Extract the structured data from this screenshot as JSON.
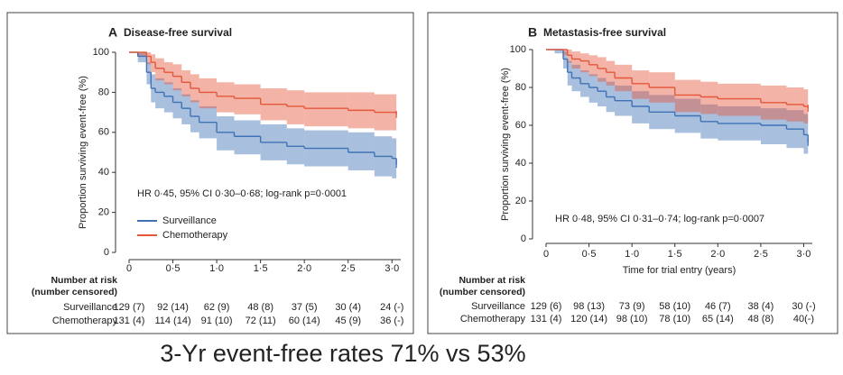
{
  "chart_data": [
    {
      "type": "line",
      "panel_label": "A",
      "title": "Disease-free survival",
      "ylabel": "Proportion surviving event-free (%)",
      "annotation": "HR 0·45, 95% CI 0·30–0·68; log-rank p=0·0001",
      "legend": "lower-left",
      "x": [
        0,
        0.1,
        0.2,
        0.25,
        0.3,
        0.4,
        0.5,
        0.6,
        0.7,
        0.8,
        1.0,
        1.2,
        1.5,
        1.8,
        2.0,
        2.5,
        2.8,
        3.0,
        3.05
      ],
      "series": [
        {
          "name": "Surveillance",
          "color": "#3f72b5",
          "values": [
            100,
            98,
            90,
            82,
            80,
            78,
            75,
            72,
            68,
            65,
            60,
            58,
            55,
            53,
            52,
            50,
            48,
            47,
            44
          ],
          "lower": [
            100,
            95,
            84,
            75,
            72,
            70,
            67,
            64,
            60,
            57,
            51,
            49,
            46,
            44,
            43,
            41,
            38,
            37,
            33
          ],
          "upper": [
            100,
            100,
            95,
            89,
            87,
            85,
            82,
            79,
            76,
            73,
            68,
            66,
            64,
            62,
            61,
            60,
            58,
            57,
            55
          ]
        },
        {
          "name": "Chemotherapy",
          "color": "#e4573b",
          "values": [
            100,
            100,
            98,
            95,
            92,
            90,
            88,
            85,
            82,
            80,
            78,
            77,
            74,
            73,
            72,
            71,
            70,
            70,
            69
          ],
          "lower": [
            100,
            98,
            94,
            90,
            86,
            84,
            81,
            78,
            75,
            72,
            70,
            69,
            66,
            64,
            63,
            62,
            61,
            61,
            59
          ],
          "upper": [
            100,
            100,
            100,
            99,
            97,
            95,
            94,
            91,
            89,
            87,
            85,
            84,
            82,
            81,
            80,
            80,
            79,
            79,
            78
          ]
        }
      ],
      "xlim": [
        0,
        3.1
      ],
      "ylim": [
        0,
        100
      ],
      "xticks": [
        0,
        {
          "value": 0.5,
          "label": "0·5"
        },
        {
          "value": 1,
          "label": "1·0"
        },
        {
          "value": 1.5,
          "label": "1·5"
        },
        {
          "value": 2,
          "label": "2·0"
        },
        {
          "value": 2.5,
          "label": "2·5"
        },
        {
          "value": 3,
          "label": "3·0"
        }
      ],
      "yticks": [
        0,
        20,
        40,
        60,
        80,
        100
      ],
      "risk_table": {
        "header": [
          "Number at risk",
          "(number censored)"
        ],
        "rows": [
          {
            "label": "Surveillance",
            "cells": [
              "129 (7)",
              "92 (14)",
              "62 (9)",
              "48 (8)",
              "37 (5)",
              "30 (4)",
              "24 (-)"
            ]
          },
          {
            "label": "Chemotherapy",
            "cells": [
              "131 (4)",
              "114 (14)",
              "91 (10)",
              "72 (11)",
              "60 (14)",
              "45 (9)",
              "36 (-)"
            ]
          }
        ]
      }
    },
    {
      "type": "line",
      "panel_label": "B",
      "title": "Metastasis-free survival",
      "ylabel": "Proportion surviving event-free (%)",
      "xlabel": "Time for trial entry (years)",
      "annotation": "HR 0·48, 95% CI 0·31–0·74; log-rank p=0·0007",
      "x": [
        0,
        0.1,
        0.2,
        0.25,
        0.3,
        0.4,
        0.5,
        0.6,
        0.7,
        0.8,
        1.0,
        1.2,
        1.5,
        1.8,
        2.0,
        2.5,
        2.8,
        3.0,
        3.05
      ],
      "series": [
        {
          "name": "Surveillance",
          "color": "#3f72b5",
          "values": [
            100,
            100,
            95,
            88,
            85,
            82,
            80,
            78,
            75,
            73,
            70,
            67,
            65,
            62,
            61,
            60,
            58,
            55,
            51
          ],
          "lower": [
            100,
            98,
            90,
            81,
            78,
            75,
            72,
            70,
            67,
            65,
            61,
            58,
            56,
            53,
            52,
            50,
            48,
            45,
            40
          ],
          "upper": [
            100,
            100,
            99,
            94,
            92,
            89,
            87,
            85,
            83,
            81,
            78,
            76,
            74,
            71,
            70,
            69,
            68,
            66,
            62
          ]
        },
        {
          "name": "Chemotherapy",
          "color": "#e4573b",
          "values": [
            100,
            100,
            100,
            97,
            95,
            94,
            92,
            90,
            88,
            85,
            82,
            80,
            76,
            75,
            74,
            72,
            71,
            70,
            69
          ],
          "lower": [
            100,
            100,
            97,
            93,
            90,
            88,
            86,
            83,
            81,
            78,
            74,
            72,
            67,
            66,
            65,
            63,
            62,
            61,
            59
          ],
          "upper": [
            100,
            100,
            100,
            100,
            99,
            98,
            97,
            96,
            94,
            92,
            89,
            88,
            84,
            83,
            82,
            81,
            80,
            79,
            78
          ]
        }
      ],
      "xlim": [
        0,
        3.1
      ],
      "ylim": [
        0,
        100
      ],
      "xticks": [
        0,
        {
          "value": 0.5,
          "label": "0·5"
        },
        {
          "value": 1,
          "label": "1·0"
        },
        {
          "value": 1.5,
          "label": "1·5"
        },
        {
          "value": 2,
          "label": "2·0"
        },
        {
          "value": 2.5,
          "label": "2·5"
        },
        {
          "value": 3,
          "label": "3·0"
        }
      ],
      "yticks": [
        0,
        20,
        40,
        60,
        80,
        100
      ],
      "risk_table": {
        "header": [
          "Number at risk",
          "(number censored)"
        ],
        "rows": [
          {
            "label": "Surveillance",
            "cells": [
              "129 (6)",
              "98 (13)",
              "73 (9)",
              "58 (10)",
              "46 (7)",
              "38 (4)",
              "30 (-)"
            ]
          },
          {
            "label": "Chemotherapy",
            "cells": [
              "131 (4)",
              "120 (14)",
              "98 (10)",
              "78 (10)",
              "65 (14)",
              "48 (8)",
              "40(-)"
            ]
          }
        ]
      }
    }
  ],
  "caption": "3-Yr event-free rates 71% vs 53%"
}
